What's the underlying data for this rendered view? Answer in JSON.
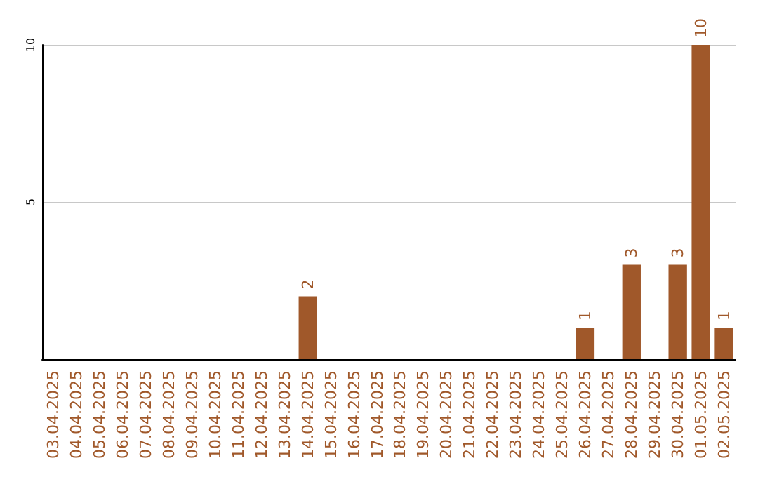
{
  "chart_data": {
    "type": "bar",
    "categories": [
      "03.04.2025",
      "04.04.2025",
      "05.04.2025",
      "06.04.2025",
      "07.04.2025",
      "08.04.2025",
      "09.04.2025",
      "10.04.2025",
      "11.04.2025",
      "12.04.2025",
      "13.04.2025",
      "14.04.2025",
      "15.04.2025",
      "16.04.2025",
      "17.04.2025",
      "18.04.2025",
      "19.04.2025",
      "20.04.2025",
      "21.04.2025",
      "22.04.2025",
      "23.04.2025",
      "24.04.2025",
      "25.04.2025",
      "26.04.2025",
      "27.04.2025",
      "28.04.2025",
      "29.04.2025",
      "30.04.2025",
      "01.05.2025",
      "02.05.2025"
    ],
    "values": [
      0,
      0,
      0,
      0,
      0,
      0,
      0,
      0,
      0,
      0,
      0,
      2,
      0,
      0,
      0,
      0,
      0,
      0,
      0,
      0,
      0,
      0,
      0,
      1,
      0,
      3,
      0,
      3,
      10,
      1
    ],
    "value_labels": [
      null,
      null,
      null,
      null,
      null,
      null,
      null,
      null,
      null,
      null,
      null,
      "2",
      null,
      null,
      null,
      null,
      null,
      null,
      null,
      null,
      null,
      null,
      null,
      "1",
      null,
      "3",
      null,
      "3",
      "10",
      "1"
    ],
    "color": "#a0582a",
    "ylim": [
      0,
      10
    ],
    "yticks": [
      5,
      10
    ],
    "grid": "y"
  }
}
